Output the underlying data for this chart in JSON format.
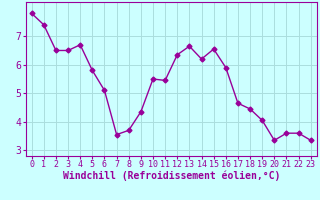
{
  "x": [
    0,
    1,
    2,
    3,
    4,
    5,
    6,
    7,
    8,
    9,
    10,
    11,
    12,
    13,
    14,
    15,
    16,
    17,
    18,
    19,
    20,
    21,
    22,
    23
  ],
  "y": [
    7.8,
    7.4,
    6.5,
    6.5,
    6.7,
    5.8,
    5.1,
    3.55,
    3.7,
    4.35,
    5.5,
    5.45,
    6.35,
    6.65,
    6.2,
    6.55,
    5.9,
    4.65,
    4.45,
    4.05,
    3.35,
    3.6,
    3.6,
    3.35
  ],
  "line_color": "#990099",
  "marker": "D",
  "markersize": 2.5,
  "linewidth": 1.0,
  "xlabel": "Windchill (Refroidissement éolien,°C)",
  "xlim": [
    -0.5,
    23.5
  ],
  "ylim": [
    2.8,
    8.2
  ],
  "yticks": [
    3,
    4,
    5,
    6,
    7
  ],
  "xticks": [
    0,
    1,
    2,
    3,
    4,
    5,
    6,
    7,
    8,
    9,
    10,
    11,
    12,
    13,
    14,
    15,
    16,
    17,
    18,
    19,
    20,
    21,
    22,
    23
  ],
  "bg_color": "#ccffff",
  "grid_color": "#aadddd",
  "xlabel_fontsize": 7,
  "ytick_fontsize": 7,
  "xtick_fontsize": 6,
  "spine_color": "#990099",
  "label_color": "#990099",
  "tick_color": "#990099"
}
